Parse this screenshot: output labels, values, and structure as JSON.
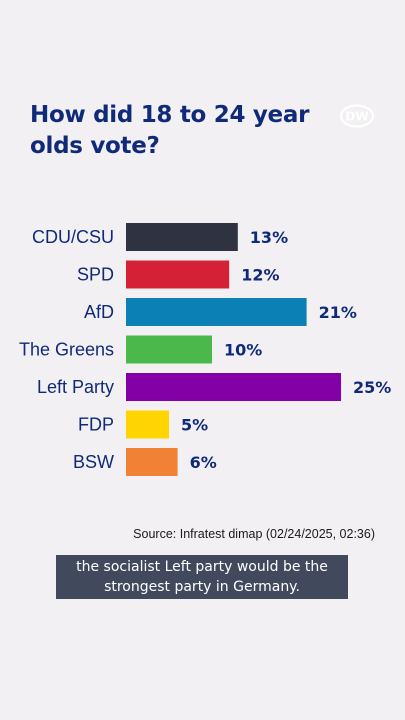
{
  "title": "How did 18 to 24 year olds vote?",
  "logo_text": "DW",
  "source": "Source: Infratest dimap (02/24/2025, 02:36)",
  "caption": {
    "line1": "the socialist Left party would be the",
    "line2": "strongest party in Germany."
  },
  "colors": {
    "title": "#102a7a",
    "value_label": "#102a7a",
    "category_label": "#102a7a",
    "background": "#f2f0f2",
    "caption_bg": "#414a5c"
  },
  "chart_data": {
    "type": "bar",
    "orientation": "horizontal",
    "title": "How did 18 to 24 year olds vote?",
    "categories": [
      "CDU/CSU",
      "SPD",
      "AfD",
      "The Greens",
      "Left Party",
      "FDP",
      "BSW"
    ],
    "values": [
      13,
      12,
      21,
      10,
      25,
      5,
      6
    ],
    "value_labels": [
      "13%",
      "12%",
      "21%",
      "10%",
      "25%",
      "5%",
      "6%"
    ],
    "bar_colors": [
      "#2f3240",
      "#d52136",
      "#0a80b4",
      "#4ab84b",
      "#8300a6",
      "#ffd400",
      "#f08135"
    ],
    "unit": "%",
    "xlim": [
      0,
      25
    ],
    "grid": false,
    "legend": "none"
  }
}
